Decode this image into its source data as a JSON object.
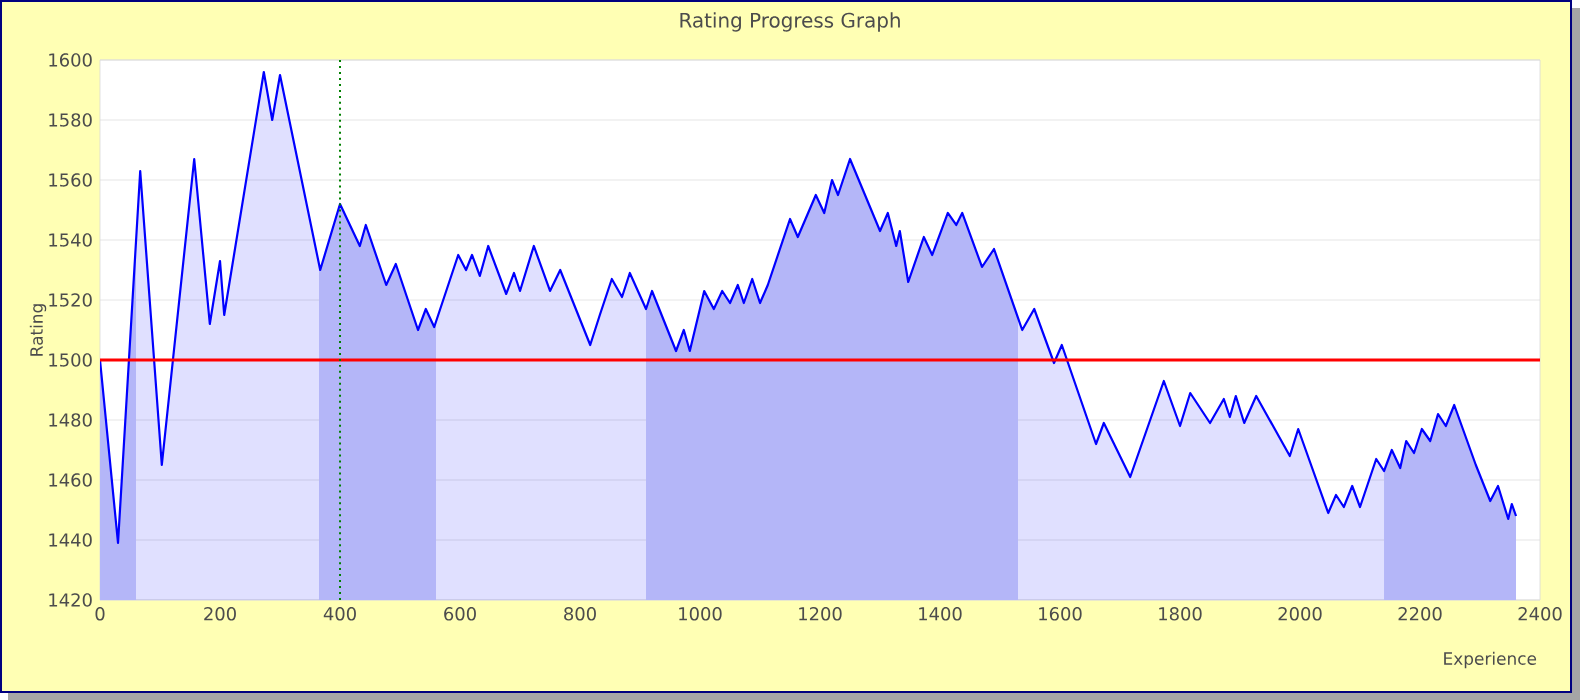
{
  "chart_data": {
    "type": "area",
    "title": "Rating Progress Graph",
    "xlabel": "Experience",
    "ylabel": "Rating",
    "xlim": [
      0,
      2400
    ],
    "ylim": [
      1420,
      1600
    ],
    "xticks": [
      0,
      200,
      400,
      600,
      800,
      1000,
      1200,
      1400,
      1600,
      1800,
      2000,
      2200,
      2400
    ],
    "yticks": [
      1420,
      1440,
      1460,
      1480,
      1500,
      1520,
      1540,
      1560,
      1580,
      1600
    ],
    "grid": "y",
    "marker": "none",
    "line_style": "solid",
    "series": [
      {
        "color": "#0000ff",
        "x": [
          0,
          30,
          67,
          103,
          157,
          183,
          200,
          207,
          273,
          287,
          300,
          367,
          400,
          433,
          443,
          477,
          493,
          530,
          543,
          557,
          597,
          610,
          620,
          633,
          647,
          677,
          690,
          700,
          723,
          750,
          767,
          817,
          833,
          853,
          870,
          883,
          910,
          920,
          960,
          973,
          983,
          1007,
          1023,
          1037,
          1050,
          1063,
          1073,
          1087,
          1100,
          1113,
          1150,
          1163,
          1193,
          1207,
          1220,
          1230,
          1250,
          1300,
          1313,
          1327,
          1333,
          1347,
          1373,
          1387,
          1413,
          1427,
          1437,
          1470,
          1490,
          1537,
          1557,
          1590,
          1603,
          1660,
          1673,
          1717,
          1773,
          1800,
          1817,
          1850,
          1873,
          1883,
          1893,
          1907,
          1927,
          1983,
          1997,
          2047,
          2060,
          2073,
          2087,
          2100,
          2127,
          2140,
          2153,
          2167,
          2177,
          2190,
          2203,
          2217,
          2230,
          2243,
          2257,
          2293,
          2317,
          2330,
          2347,
          2353,
          2360
        ],
        "values": [
          1500,
          1439,
          1563,
          1465,
          1567,
          1512,
          1533,
          1515,
          1596,
          1580,
          1595,
          1530,
          1552,
          1538,
          1545,
          1525,
          1532,
          1510,
          1517,
          1511,
          1535,
          1530,
          1535,
          1528,
          1538,
          1522,
          1529,
          1523,
          1538,
          1523,
          1530,
          1505,
          1515,
          1527,
          1521,
          1529,
          1517,
          1523,
          1503,
          1510,
          1503,
          1523,
          1517,
          1523,
          1519,
          1525,
          1519,
          1527,
          1519,
          1525,
          1547,
          1541,
          1555,
          1549,
          1560,
          1555,
          1567,
          1543,
          1549,
          1538,
          1543,
          1526,
          1541,
          1535,
          1549,
          1545,
          1549,
          1531,
          1537,
          1510,
          1517,
          1499,
          1505,
          1472,
          1479,
          1461,
          1493,
          1478,
          1489,
          1479,
          1487,
          1481,
          1488,
          1479,
          1488,
          1468,
          1477,
          1449,
          1455,
          1451,
          1458,
          1451,
          1467,
          1463,
          1470,
          1464,
          1473,
          1469,
          1477,
          1473,
          1482,
          1478,
          1485,
          1465,
          1453,
          1458,
          1447,
          1452,
          1448
        ]
      }
    ],
    "ref_lines": [
      {
        "axis": "y",
        "value": 1500,
        "color": "#ff0000",
        "line_style": "solid"
      },
      {
        "axis": "x",
        "value": 400,
        "color": "#008000",
        "line_style": "dotted"
      }
    ],
    "bands": [
      {
        "axis": "x",
        "from": 0,
        "to": 60,
        "color": "#cdd0f8"
      },
      {
        "axis": "x",
        "from": 365,
        "to": 560,
        "color": "#cdd0f8"
      },
      {
        "axis": "x",
        "from": 910,
        "to": 1530,
        "color": "#cdd0f8"
      },
      {
        "axis": "x",
        "from": 2140,
        "to": 2360,
        "color": "#cdd0f8"
      }
    ]
  }
}
